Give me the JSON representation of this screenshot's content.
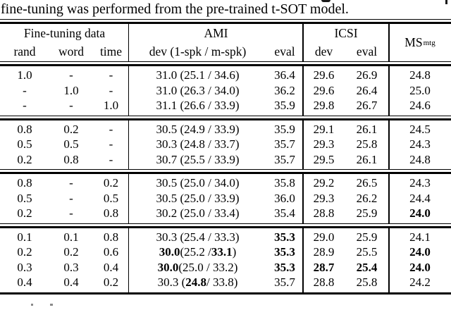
{
  "caption": {
    "text": "fine-tuning was performed from the pre-trained t-SOT model."
  },
  "table": {
    "groups": {
      "finetuning": "Fine-tuning data",
      "ami": "AMI",
      "icsi": "ICSI",
      "ms_base": "MS",
      "ms_sup": "mtg"
    },
    "subheaders": [
      "rand",
      "word",
      "time",
      "dev (1-spk / m-spk)",
      "eval",
      "dev",
      "eval"
    ],
    "blocks": [
      [
        {
          "rand": "1.0",
          "word": "-",
          "time": "-",
          "ami_dev": "31.0 (25.1 / 34.6)",
          "ami_eval": "36.4",
          "icsi_dev": "29.6",
          "icsi_eval": "26.9",
          "ms": "24.8"
        },
        {
          "rand": "-",
          "word": "1.0",
          "time": "-",
          "ami_dev": "31.0 (26.3 / 34.0)",
          "ami_eval": "36.2",
          "icsi_dev": "29.6",
          "icsi_eval": "26.4",
          "ms": "25.0"
        },
        {
          "rand": "-",
          "word": "-",
          "time": "1.0",
          "ami_dev": "31.1 (26.6 / 33.9)",
          "ami_eval": "35.9",
          "icsi_dev": "29.8",
          "icsi_eval": "26.7",
          "ms": "24.6"
        }
      ],
      [
        {
          "rand": "0.8",
          "word": "0.2",
          "time": "-",
          "ami_dev": "30.5 (24.9 / 33.9)",
          "ami_eval": "35.9",
          "icsi_dev": "29.1",
          "icsi_eval": "26.1",
          "ms": "24.5"
        },
        {
          "rand": "0.5",
          "word": "0.5",
          "time": "-",
          "ami_dev": "30.3 (24.8 / 33.7)",
          "ami_eval": "35.7",
          "icsi_dev": "29.3",
          "icsi_eval": "25.8",
          "ms": "24.3"
        },
        {
          "rand": "0.2",
          "word": "0.8",
          "time": "-",
          "ami_dev": "30.7 (25.5 / 33.9)",
          "ami_eval": "35.7",
          "icsi_dev": "29.5",
          "icsi_eval": "26.1",
          "ms": "24.8"
        }
      ],
      [
        {
          "rand": "0.8",
          "word": "-",
          "time": "0.2",
          "ami_dev": "30.5 (25.0 / 34.0)",
          "ami_eval": "35.8",
          "icsi_dev": "29.2",
          "icsi_eval": "26.5",
          "ms": "24.3"
        },
        {
          "rand": "0.5",
          "word": "-",
          "time": "0.5",
          "ami_dev": "30.5 (25.0 / 33.9)",
          "ami_eval": "36.0",
          "icsi_dev": "29.3",
          "icsi_eval": "26.2",
          "ms": "24.4"
        },
        {
          "rand": "0.2",
          "word": "-",
          "time": "0.8",
          "ami_dev": "30.2 (25.0 / 33.4)",
          "ami_eval": "35.4",
          "icsi_dev": "28.8",
          "icsi_eval": "25.9",
          "ms": "**24.0**"
        }
      ],
      [
        {
          "rand": "0.1",
          "word": "0.1",
          "time": "0.8",
          "ami_dev": "30.3 (25.4 / 33.3)",
          "ami_eval": "**35.3**",
          "icsi_dev": "29.0",
          "icsi_eval": "25.9",
          "ms": "24.1"
        },
        {
          "rand": "0.2",
          "word": "0.2",
          "time": "0.6",
          "ami_dev": "**30.0** (25.2 / **33.1**)",
          "ami_eval": "**35.3**",
          "icsi_dev": "28.9",
          "icsi_eval": "25.5",
          "ms": "**24.0**"
        },
        {
          "rand": "0.3",
          "word": "0.3",
          "time": "0.4",
          "ami_dev": "**30.0** (25.0 / 33.2)",
          "ami_eval": "**35.3**",
          "icsi_dev": "**28.7**",
          "icsi_eval": "**25.4**",
          "ms": "**24.0**"
        },
        {
          "rand": "0.4",
          "word": "0.4",
          "time": "0.2",
          "ami_dev": "30.3 (**24.8** / 33.8)",
          "ami_eval": "35.7",
          "icsi_dev": "28.8",
          "icsi_eval": "25.8",
          "ms": "24.2"
        }
      ]
    ]
  }
}
